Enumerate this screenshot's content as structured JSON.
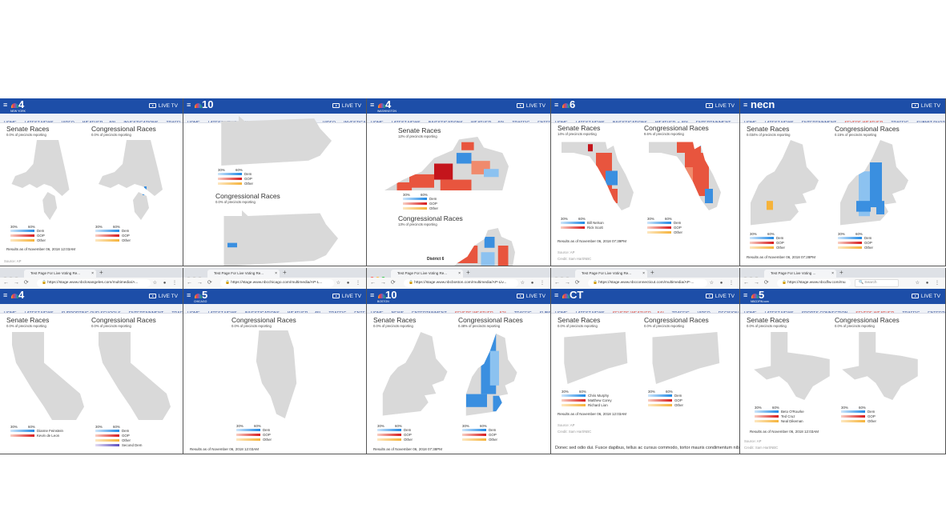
{
  "colors": {
    "header": "#1d4ea8",
    "nav_bg": "#eef1f7",
    "dem": "#1e88e5",
    "gop": "#d7191c",
    "other": "#f6b33a",
    "second_dem": "#5b4fc0",
    "map_gray": "#d9d9d9",
    "alert": "#d9372b"
  },
  "legend_ticks": [
    "30%",
    "60%"
  ],
  "live_tv": "LIVE TV",
  "panels": [
    {
      "id": "new-york",
      "logo": "4",
      "logo_sub": "NEW YORK",
      "nav": [
        "HOME",
        "LATEST NEWS",
        "VIDEO",
        "WEATHER ☁ 59°",
        "INVESTIGATIONS",
        "TRAFFI"
      ],
      "races": [
        {
          "title": "Senate Races",
          "reporting": "0.0% of precincts reporting"
        },
        {
          "title": "Congressional Races",
          "reporting": "0.0% of precincts reporting"
        }
      ],
      "legends": [
        [
          "Dem",
          "GOP",
          "Other"
        ],
        [
          "Dem",
          "GOP",
          "Other"
        ]
      ],
      "results": "Results as of November 06, 2018 12:03AM",
      "source": "Source: AP"
    },
    {
      "id": "philadelphia",
      "logo": "10",
      "logo_sub": "",
      "nav": [
        "HOME",
        "LATEST NEWS",
        "U.S. & WORLD",
        "WEATHER ☁ 58°",
        "VIDEO",
        "INVESTIGA"
      ],
      "races": [
        {
          "title": "Congressional Races",
          "reporting": "0.0% of precincts reporting"
        }
      ],
      "legends": [
        [
          "Dem",
          "GOP",
          "Other"
        ]
      ]
    },
    {
      "id": "washington",
      "logo": "4",
      "logo_sub": "WASHINGTON",
      "nav": [
        "HOME",
        "LATEST NEWS",
        "INVESTIGATIONS",
        "WEATHER ☁ 60°",
        "TRAFFIC",
        "ENTER"
      ],
      "races": [
        {
          "title": "Senate Races",
          "reporting": "12% of precincts reporting"
        },
        {
          "title": "Congressional Races",
          "reporting": "13% of precincts reporting"
        }
      ],
      "legends": [
        [
          "Dem",
          "GOP",
          "Other"
        ]
      ],
      "tooltip": "District 6"
    },
    {
      "id": "miami",
      "logo": "6",
      "logo_sub": "",
      "nav": [
        "HOME",
        "LATEST NEWS",
        "INVESTIGATIONS",
        "WEATHER ☀ 80°",
        "ENTERTAINMENT"
      ],
      "races": [
        {
          "title": "Senate Races",
          "reporting": "14% of precincts reporting"
        },
        {
          "title": "Congressional Races",
          "reporting": "9.6% of precincts reporting"
        }
      ],
      "legends": [
        [
          "Bill Nelson",
          "Rick Scott"
        ],
        [
          "Dem",
          "GOP",
          "Other"
        ]
      ],
      "results": "Results as of November 06, 2018 07:39PM",
      "source": "Source: AP",
      "credit": "Credit: Sam Hart/NBC"
    },
    {
      "id": "necn",
      "logo": "necn",
      "logo_sub": "",
      "nav": [
        "HOME",
        "LATEST NEWS",
        "ENTERTAINMENT",
        "SEVERE WEATHER",
        "TRAFFIC",
        "SUBMIT PHOTOS/VIDEOS"
      ],
      "nav_alert": [
        "SEVERE WEATHER"
      ],
      "races": [
        {
          "title": "Senate Races",
          "reporting": "0.034% of precincts reporting"
        },
        {
          "title": "Congressional Races",
          "reporting": "0.15% of precincts reporting"
        }
      ],
      "legends": [
        [
          "Dem",
          "GOP",
          "Other"
        ],
        [
          "Dem",
          "GOP",
          "Other"
        ]
      ],
      "results": "Results as of November 06, 2018 07:28PM"
    },
    {
      "id": "los-angeles",
      "logo": "4",
      "logo_sub": "",
      "browser": {
        "tab": "Test Page For Live Voting Re...",
        "url": "https://stage.www.nbclosangeles.com/multimedia/A..."
      },
      "nav": [
        "HOME",
        "LATEST NEWS",
        "SUPPORTING OUR SCHOOLS",
        "ENTERTAINMENT",
        "TRAFF"
      ],
      "races": [
        {
          "title": "Senate Races",
          "reporting": "0.0% of precincts reporting"
        },
        {
          "title": "Congressional Races",
          "reporting": "0.0% of precincts reporting"
        }
      ],
      "legends": [
        [
          "Dianne Feinstein",
          "Kevin de Leon"
        ],
        [
          "Dem",
          "GOP",
          "Other",
          "Second Dem"
        ]
      ]
    },
    {
      "id": "chicago",
      "logo": "5",
      "logo_sub": "CHICAGO",
      "browser": {
        "tab": "Test Page For Live Voting Re...",
        "url": "https://stage.www.nbcchicago.com/multimedia/AP-L..."
      },
      "nav": [
        "HOME",
        "LATEST NEWS",
        "INVESTIGATIONS",
        "WEATHER ☁ 45°",
        "TRAFFIC",
        "ENTE"
      ],
      "races": [
        {
          "title": "Congressional Races",
          "reporting": "0.0% of precincts reporting"
        }
      ],
      "legends": [
        [
          "Dem",
          "GOP",
          "Other"
        ]
      ],
      "results": "Results as of November 06, 2018 12:03AM"
    },
    {
      "id": "boston",
      "logo": "10",
      "logo_sub": "BOSTON",
      "browser": {
        "tab": "Test Page For Live Voting Re...",
        "url": "https://stage.www.nbcboston.com/multimedia/AP-Liv...",
        "mac": true
      },
      "nav": [
        "HOME",
        "NEWS",
        "ENTERTAINMENT",
        "SEVERE WEATHER ☁ 52°",
        "TRAFFIC",
        "SUBS"
      ],
      "nav_alert": [
        "SEVERE WEATHER ☁ 52°"
      ],
      "races": [
        {
          "title": "Senate Races",
          "reporting": "0.0% of precincts reporting"
        },
        {
          "title": "Congressional Races",
          "reporting": "0.48% of precincts reporting"
        }
      ],
      "legends": [
        [
          "Dem",
          "GOP",
          "Other"
        ],
        [
          "Dem",
          "GOP",
          "Other"
        ]
      ],
      "results": "Results as of November 06, 2018 07:38PM"
    },
    {
      "id": "connecticut",
      "logo": "CT",
      "logo_sub": "",
      "browser": {
        "tab": "Test Page For Live Voting Re...",
        "url": "https://stage.www.nbcconnecticut.com/multimedia/AP-..."
      },
      "nav": [
        "HOME",
        "LATEST NEWS",
        "SEVERE WEATHER ☁ 54°",
        "TRAFFIC",
        "VIDEO",
        "DECISION"
      ],
      "nav_alert": [
        "SEVERE WEATHER ☁ 54°"
      ],
      "races": [
        {
          "title": "Senate Races",
          "reporting": "0.0% of precincts reporting"
        },
        {
          "title": "Congressional Races",
          "reporting": "0.0% of precincts reporting"
        }
      ],
      "legends": [
        [
          "Chris Murphy",
          "Matthew Corey",
          "Richard Lion"
        ],
        [
          "Dem",
          "GOP",
          "Other"
        ]
      ],
      "results": "Results as of November 06, 2018 12:03AM",
      "source": "Source: AP",
      "credit": "Credit: Sam Hart/NBC",
      "body": "Donec sed odio dui. Fusce dapibus, tellus ac cursus commodo, tortor mauris condimentum nibh,"
    },
    {
      "id": "dallas-fort-worth",
      "logo": "5",
      "logo_sub": "NBCDFW.com",
      "browser": {
        "tab": "Test Page For Live Voting ...",
        "url": "https://stage.www.nbcdfw.com/mu",
        "search": "Search",
        "firefox": true
      },
      "nav": [
        "HOME",
        "LATEST NEWS",
        "SPORTS CONNECTION",
        "SEVERE WEATHER",
        "TRAFFIC",
        "ENTERTA"
      ],
      "nav_alert": [
        "SEVERE WEATHER"
      ],
      "races": [
        {
          "title": "Senate Races",
          "reporting": "0.0% of precincts reporting"
        },
        {
          "title": "Congressional Races",
          "reporting": "0.0% of precincts reporting"
        }
      ],
      "legends": [
        [
          "Beto O'Rourke",
          "Ted Cruz",
          "Neal Dikeman"
        ],
        [
          "Dem",
          "GOP",
          "Other"
        ]
      ],
      "results": "Results as of November 06, 2018 12:03AM",
      "source": "Source: AP",
      "credit": "Credit: Sam Hart/NBC"
    }
  ]
}
